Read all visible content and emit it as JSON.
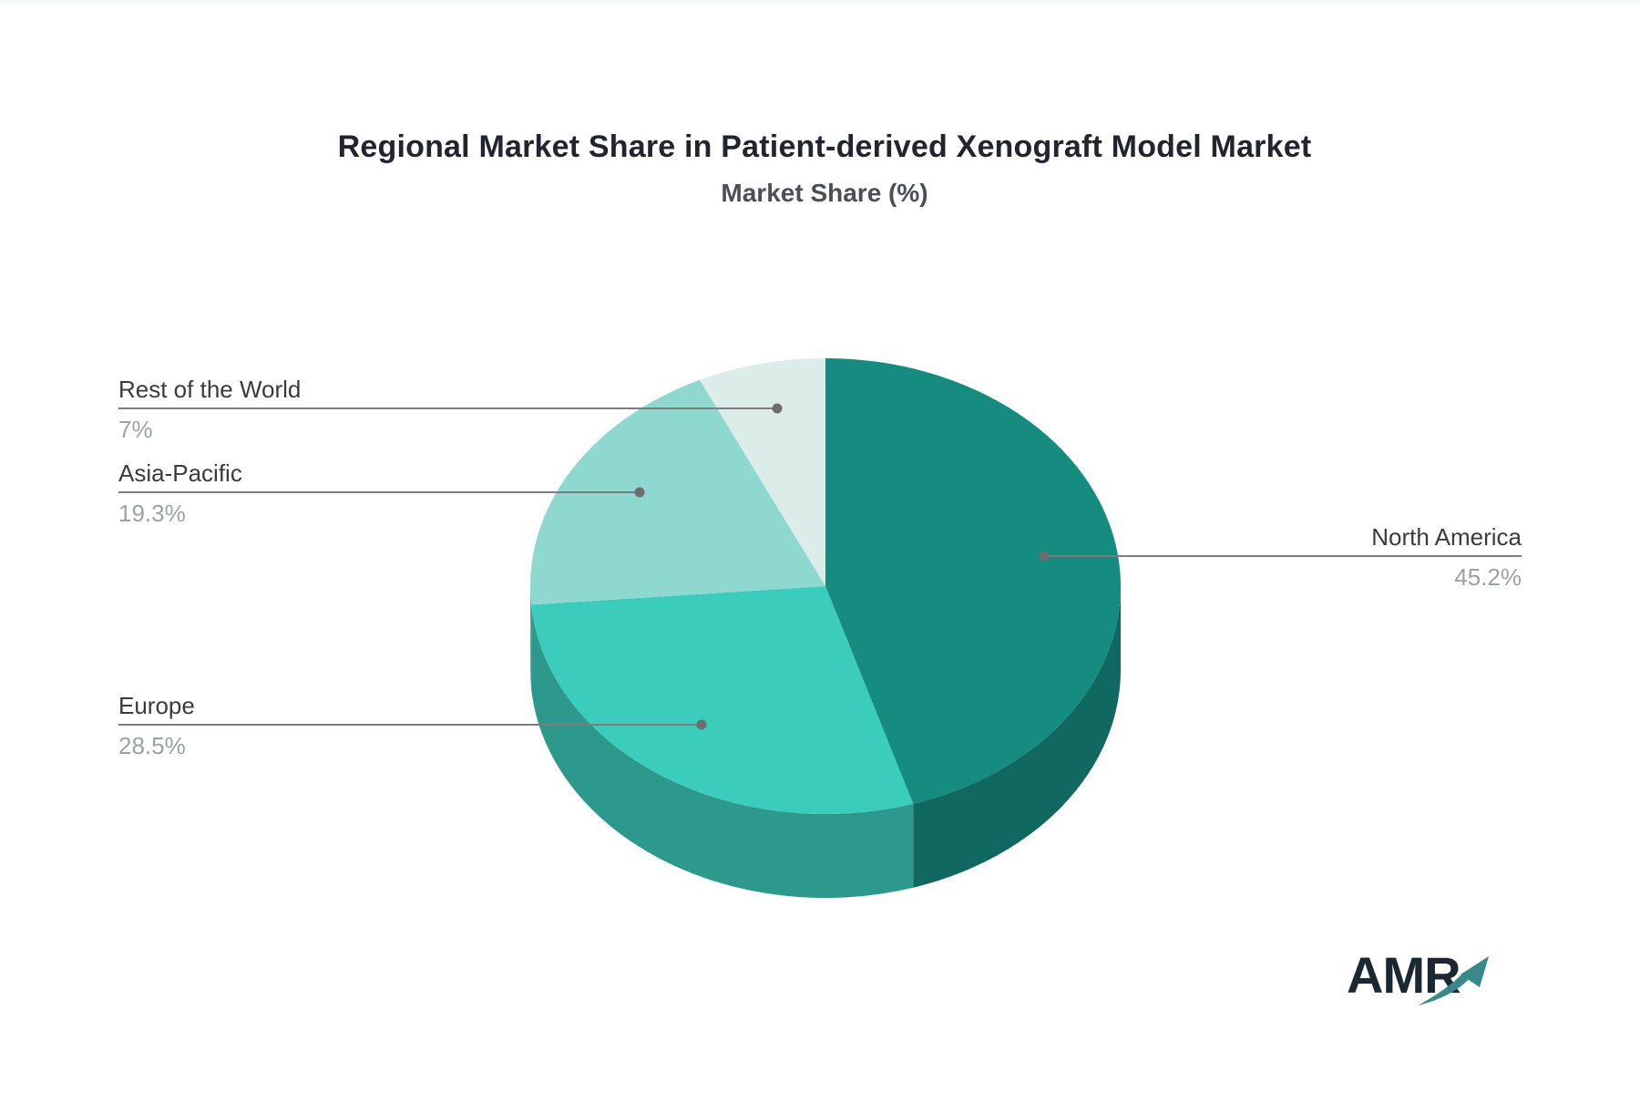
{
  "chart_data": {
    "type": "pie",
    "title": "Regional Market Share in Patient-derived Xenograft Model Market",
    "subtitle": "Market Share (%)",
    "unit": "%",
    "legend_position": "none",
    "style": {
      "effect": "3d",
      "start_angle_deg": 0,
      "direction": "clockwise",
      "leader_line_color": "#7d7d7d",
      "leader_dot_color": "#6e6e6e",
      "label_color": "#3b3b3b",
      "value_color": "#9da1a4"
    },
    "slices": [
      {
        "label": "North America",
        "value": 45.2,
        "display": "45.2%",
        "color": "#168B80"
      },
      {
        "label": "Europe",
        "value": 28.5,
        "display": "28.5%",
        "color": "#3CCCBB"
      },
      {
        "label": "Asia-Pacific",
        "value": 19.3,
        "display": "19.3%",
        "color": "#8FD8D0"
      },
      {
        "label": "Rest of the World",
        "value": 7,
        "display": "7%",
        "color": "#DCECE9"
      }
    ]
  },
  "logo": {
    "text": "AMR",
    "text_color": "#1c2831",
    "arrow_color": "#37898C"
  }
}
